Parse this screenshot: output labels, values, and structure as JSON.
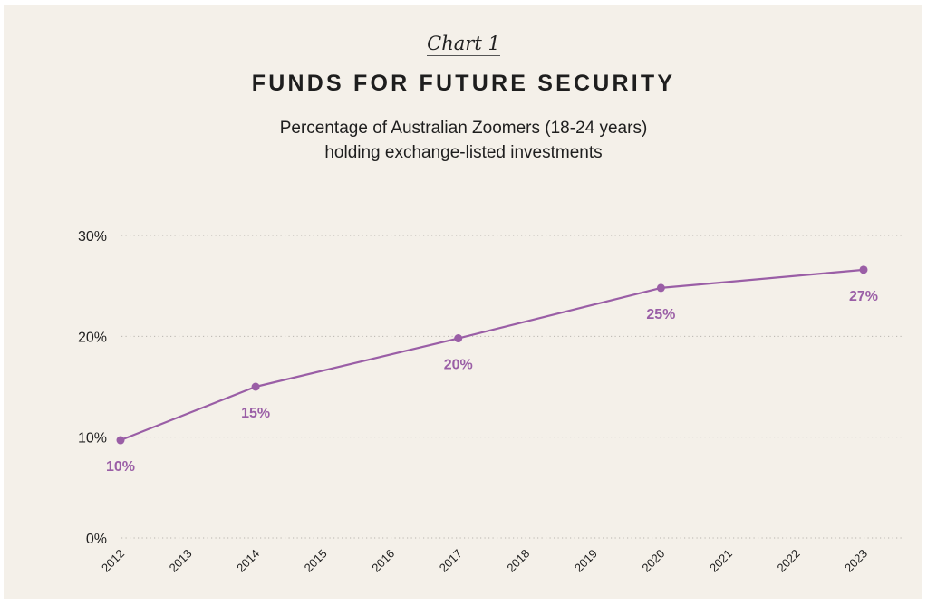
{
  "chart_data": {
    "type": "line",
    "chart_label": "Chart 1",
    "title": "FUNDS FOR FUTURE SECURITY",
    "subtitle_lines": [
      "Percentage of Australian Zoomers (18-24 years)",
      "holding exchange-listed investments"
    ],
    "xlabel": "",
    "ylabel": "",
    "categories": [
      "2012",
      "2013",
      "2014",
      "2015",
      "2016",
      "2017",
      "2018",
      "2019",
      "2020",
      "2021",
      "2022",
      "2023"
    ],
    "ylim": [
      0,
      30
    ],
    "yticks": [
      0,
      10,
      20,
      30
    ],
    "ytick_labels": [
      "0%",
      "10%",
      "20%",
      "30%"
    ],
    "grid": "horizontal-dotted",
    "legend": "none",
    "series": [
      {
        "name": "Zoomers holding exchange-listed investments",
        "color": "#9a5ea6",
        "points": [
          {
            "x": "2012",
            "y": 9.7,
            "label": "10%"
          },
          {
            "x": "2014",
            "y": 15.0,
            "label": "15%"
          },
          {
            "x": "2017",
            "y": 19.8,
            "label": "20%"
          },
          {
            "x": "2020",
            "y": 24.8,
            "label": "25%"
          },
          {
            "x": "2023",
            "y": 26.6,
            "label": "27%"
          }
        ]
      }
    ]
  },
  "colors": {
    "background": "#f4f0e9",
    "text": "#1e1e1e",
    "gridline": "#b9b5ae",
    "accent": "#9a5ea6"
  }
}
